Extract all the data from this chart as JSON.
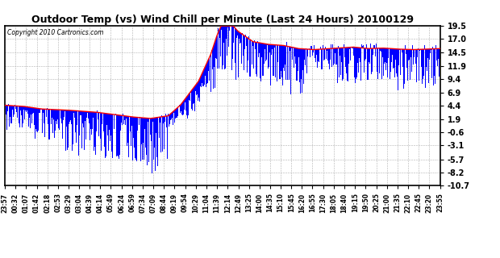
{
  "title": "Outdoor Temp (vs) Wind Chill per Minute (Last 24 Hours) 20100129",
  "copyright": "Copyright 2010 Cartronics.com",
  "yticks": [
    19.5,
    17.0,
    14.5,
    11.9,
    9.4,
    6.9,
    4.4,
    1.9,
    -0.6,
    -3.1,
    -5.7,
    -8.2,
    -10.7
  ],
  "ymin": -10.7,
  "ymax": 19.5,
  "bar_color": "#0000ff",
  "line_color": "#ff0000",
  "background_color": "#ffffff",
  "grid_color": "#b0b0b0",
  "title_color": "#000000",
  "copyright_color": "#000000",
  "xtick_labels": [
    "23:57",
    "00:32",
    "01:07",
    "01:42",
    "02:18",
    "02:53",
    "03:29",
    "03:04",
    "04:39",
    "04:14",
    "05:49",
    "06:24",
    "06:59",
    "07:34",
    "07:09",
    "08:44",
    "09:19",
    "09:54",
    "10:29",
    "11:04",
    "11:39",
    "12:14",
    "12:49",
    "13:25",
    "14:00",
    "14:35",
    "15:10",
    "15:45",
    "16:20",
    "16:55",
    "17:30",
    "18:05",
    "18:40",
    "19:15",
    "19:50",
    "20:25",
    "21:00",
    "21:35",
    "22:10",
    "22:45",
    "23:20",
    "23:55"
  ],
  "n_points": 1440,
  "temp_segments": [
    {
      "t0": 0,
      "t1": 60,
      "v0": 4.5,
      "v1": 4.3
    },
    {
      "t0": 60,
      "t1": 120,
      "v0": 4.3,
      "v1": 3.8
    },
    {
      "t0": 120,
      "t1": 200,
      "v0": 3.8,
      "v1": 3.6
    },
    {
      "t0": 200,
      "t1": 300,
      "v0": 3.6,
      "v1": 3.2
    },
    {
      "t0": 300,
      "t1": 420,
      "v0": 3.2,
      "v1": 2.3
    },
    {
      "t0": 420,
      "t1": 480,
      "v0": 2.3,
      "v1": 2.0
    },
    {
      "t0": 480,
      "t1": 540,
      "v0": 2.0,
      "v1": 2.5
    },
    {
      "t0": 540,
      "t1": 580,
      "v0": 2.5,
      "v1": 4.5
    },
    {
      "t0": 580,
      "t1": 640,
      "v0": 4.5,
      "v1": 9.0
    },
    {
      "t0": 640,
      "t1": 680,
      "v0": 9.0,
      "v1": 14.0
    },
    {
      "t0": 680,
      "t1": 700,
      "v0": 14.0,
      "v1": 17.5
    },
    {
      "t0": 700,
      "t1": 720,
      "v0": 17.5,
      "v1": 20.2
    },
    {
      "t0": 720,
      "t1": 730,
      "v0": 20.2,
      "v1": 19.5
    },
    {
      "t0": 730,
      "t1": 740,
      "v0": 19.5,
      "v1": 20.5
    },
    {
      "t0": 740,
      "t1": 750,
      "v0": 20.5,
      "v1": 19.8
    },
    {
      "t0": 750,
      "t1": 770,
      "v0": 19.8,
      "v1": 18.5
    },
    {
      "t0": 770,
      "t1": 820,
      "v0": 18.5,
      "v1": 16.5
    },
    {
      "t0": 820,
      "t1": 870,
      "v0": 16.5,
      "v1": 16.0
    },
    {
      "t0": 870,
      "t1": 920,
      "v0": 16.0,
      "v1": 15.8
    },
    {
      "t0": 920,
      "t1": 970,
      "v0": 15.8,
      "v1": 15.2
    },
    {
      "t0": 970,
      "t1": 1020,
      "v0": 15.2,
      "v1": 15.0
    },
    {
      "t0": 1020,
      "t1": 1100,
      "v0": 15.0,
      "v1": 15.3
    },
    {
      "t0": 1100,
      "t1": 1150,
      "v0": 15.3,
      "v1": 15.5
    },
    {
      "t0": 1150,
      "t1": 1200,
      "v0": 15.5,
      "v1": 15.2
    },
    {
      "t0": 1200,
      "t1": 1250,
      "v0": 15.2,
      "v1": 15.3
    },
    {
      "t0": 1250,
      "t1": 1300,
      "v0": 15.3,
      "v1": 15.1
    },
    {
      "t0": 1300,
      "t1": 1350,
      "v0": 15.1,
      "v1": 15.0
    },
    {
      "t0": 1350,
      "t1": 1440,
      "v0": 15.0,
      "v1": 15.2
    }
  ],
  "wc_noise": [
    {
      "t0": 0,
      "t1": 60,
      "lo": -5.0,
      "hi": 0.5
    },
    {
      "t0": 60,
      "t1": 200,
      "lo": -6.0,
      "hi": 0.5
    },
    {
      "t0": 200,
      "t1": 420,
      "lo": -8.5,
      "hi": 0.5
    },
    {
      "t0": 420,
      "t1": 480,
      "lo": -9.0,
      "hi": 0.3
    },
    {
      "t0": 480,
      "t1": 540,
      "lo": -11.0,
      "hi": 0.5
    },
    {
      "t0": 540,
      "t1": 600,
      "lo": -3.0,
      "hi": 0.5
    },
    {
      "t0": 600,
      "t1": 680,
      "lo": -5.0,
      "hi": 0.5
    },
    {
      "t0": 680,
      "t1": 780,
      "lo": -10.0,
      "hi": 1.0
    },
    {
      "t0": 780,
      "t1": 900,
      "lo": -8.0,
      "hi": 1.0
    },
    {
      "t0": 900,
      "t1": 1000,
      "lo": -9.0,
      "hi": 1.0
    },
    {
      "t0": 1000,
      "t1": 1100,
      "lo": -4.0,
      "hi": 1.0
    },
    {
      "t0": 1100,
      "t1": 1200,
      "lo": -7.0,
      "hi": 1.0
    },
    {
      "t0": 1200,
      "t1": 1300,
      "lo": -6.0,
      "hi": 1.0
    },
    {
      "t0": 1300,
      "t1": 1440,
      "lo": -8.0,
      "hi": 1.0
    }
  ]
}
